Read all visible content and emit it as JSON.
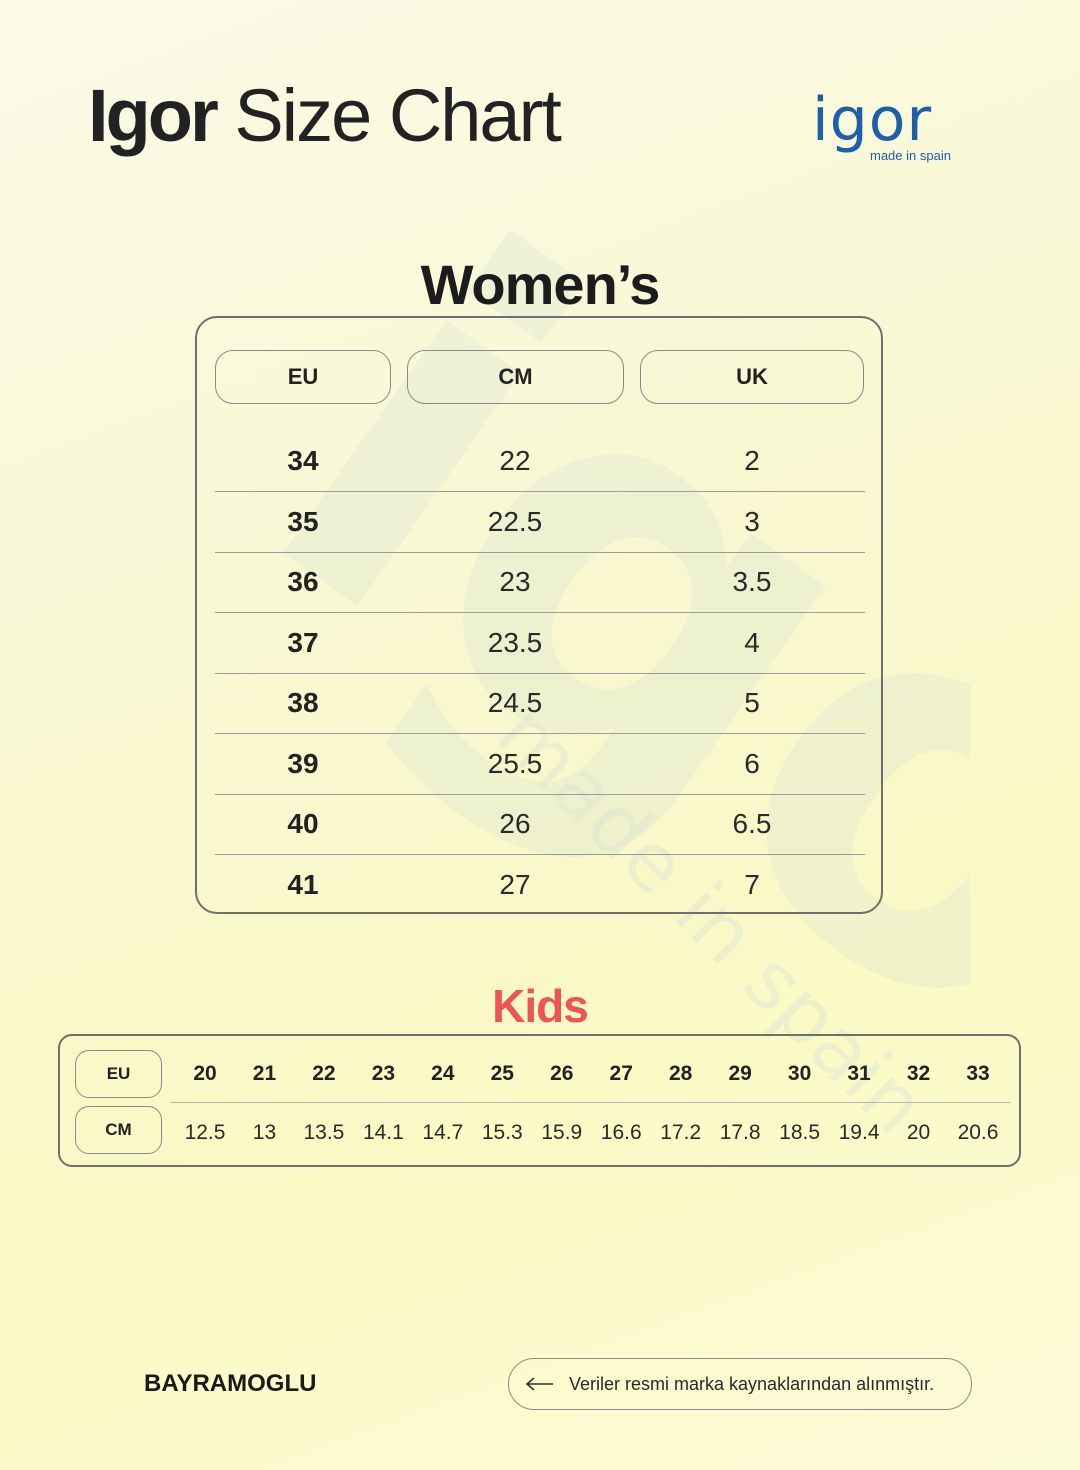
{
  "header": {
    "title_brand": "Igor",
    "title_rest": "Size Chart",
    "logo_word": "igor",
    "logo_tagline": "made in spain",
    "logo_color": "#1d5fa8"
  },
  "watermark": {
    "word": "igor",
    "tagline": "made in spain"
  },
  "womens": {
    "title": "Women’s",
    "headers": [
      "EU",
      "CM",
      "UK"
    ],
    "rows": [
      {
        "eu": "34",
        "cm": "22",
        "uk": "2"
      },
      {
        "eu": "35",
        "cm": "22.5",
        "uk": "3"
      },
      {
        "eu": "36",
        "cm": "23",
        "uk": "3.5"
      },
      {
        "eu": "37",
        "cm": "23.5",
        "uk": "4"
      },
      {
        "eu": "38",
        "cm": "24.5",
        "uk": "5"
      },
      {
        "eu": "39",
        "cm": "25.5",
        "uk": "6"
      },
      {
        "eu": "40",
        "cm": "26",
        "uk": "6.5"
      },
      {
        "eu": "41",
        "cm": "27",
        "uk": "7"
      }
    ]
  },
  "kids": {
    "title": "Kids",
    "title_color": "#ef5353",
    "eu_label": "EU",
    "cm_label": "CM",
    "eu": [
      "20",
      "21",
      "22",
      "23",
      "24",
      "25",
      "26",
      "27",
      "28",
      "29",
      "30",
      "31",
      "32",
      "33"
    ],
    "cm": [
      "12.5",
      "13",
      "13.5",
      "14.1",
      "14.7",
      "15.3",
      "15.9",
      "16.6",
      "17.2",
      "17.8",
      "18.5",
      "19.4",
      "20",
      "20.6"
    ]
  },
  "footer": {
    "brand": "BAYRAMOGLU",
    "note_icon": "arrow-left-icon",
    "note": "Veriler resmi marka kaynaklarından alınmıştır."
  }
}
